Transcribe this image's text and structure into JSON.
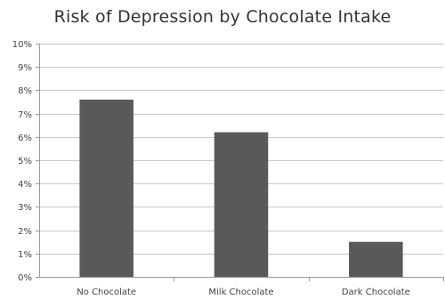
{
  "chart_data": {
    "type": "bar",
    "title": "Risk of Depression by Chocolate Intake",
    "xlabel": "",
    "ylabel": "",
    "categories": [
      "No Chocolate",
      "Milk Chocolate",
      "Dark Chocolate"
    ],
    "values": [
      7.6,
      6.2,
      1.5
    ],
    "unit": "%",
    "ylim": [
      0,
      10
    ],
    "yticks": [
      "0%",
      "1%",
      "2%",
      "3%",
      "4%",
      "5%",
      "6%",
      "7%",
      "8%",
      "9%",
      "10%"
    ],
    "grid": true,
    "legend": "none",
    "bar_color": "#595959",
    "grid_color": "#c8c8c8",
    "axis_color": "#9a9a9a"
  }
}
